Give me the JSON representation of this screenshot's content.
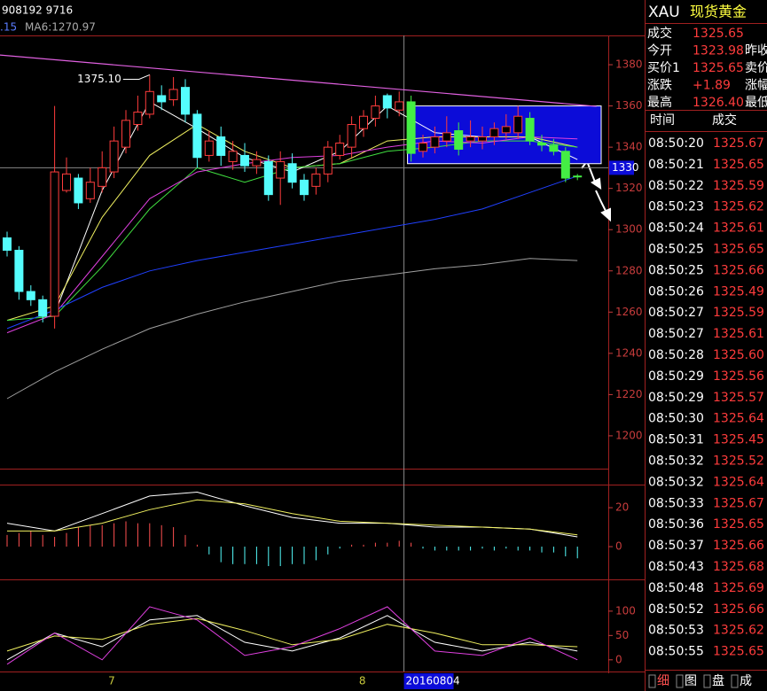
{
  "status": "908192 9716",
  "ma_info": [
    ".15",
    "MA6:1270.97"
  ],
  "chart_data": [
    {
      "type": "candlestick",
      "ylim": [
        1184.5,
        1394.2
      ],
      "yticks": [
        1200,
        1220,
        1240,
        1260,
        1280,
        1300,
        1320,
        1340,
        1360,
        1380
      ],
      "xlim": [
        -0.6,
        50.3
      ],
      "up_color": "#ff3c3c",
      "down_color": "#54fcfc",
      "open": [
        1296,
        1290,
        1270,
        1266,
        1258,
        1319,
        1325,
        1315,
        1321,
        1328,
        1340,
        1351,
        1356,
        1365,
        1363,
        1369,
        1356,
        1336,
        1345,
        1333,
        1336,
        1331,
        1333,
        1325,
        1332,
        1324,
        1321,
        1327,
        1336,
        1340,
        1349,
        1354,
        1365,
        1358,
        1362,
        1338,
        1340,
        1343,
        1348,
        1343,
        1343,
        1345,
        1347,
        1347,
        1354,
        1342,
        1341,
        1338,
        1326
      ],
      "high": [
        1299,
        1292,
        1273,
        1268,
        1360,
        1335,
        1327,
        1330,
        1338,
        1350,
        1358,
        1365,
        1375.1,
        1370,
        1374,
        1373,
        1358,
        1348,
        1350,
        1343,
        1342,
        1338,
        1336,
        1338,
        1337,
        1327,
        1330,
        1343,
        1346,
        1355,
        1358,
        1365,
        1366,
        1367,
        1365,
        1346,
        1350,
        1355,
        1352,
        1353,
        1350,
        1352,
        1356,
        1360,
        1357,
        1346,
        1344,
        1340,
        1327
      ],
      "low": [
        1287,
        1266,
        1263,
        1255,
        1252,
        1318,
        1310,
        1313,
        1318,
        1325,
        1337,
        1348,
        1354,
        1358,
        1360,
        1352,
        1330,
        1333,
        1331,
        1329,
        1328,
        1327,
        1314,
        1312,
        1320,
        1314,
        1317,
        1323,
        1334,
        1335,
        1345,
        1350,
        1354,
        1355,
        1333,
        1335,
        1337,
        1340,
        1336,
        1340,
        1339,
        1341,
        1344,
        1344,
        1341,
        1338,
        1336,
        1323,
        1324
      ],
      "close": [
        1290,
        1270,
        1266,
        1258,
        1328,
        1327,
        1313,
        1323,
        1330,
        1343,
        1353,
        1357,
        1367,
        1362,
        1368,
        1356,
        1335,
        1343,
        1336,
        1338,
        1331,
        1334,
        1317,
        1333,
        1323,
        1317,
        1327,
        1340,
        1342,
        1351,
        1355,
        1360,
        1359,
        1362,
        1337,
        1342,
        1345,
        1347,
        1339,
        1345,
        1345,
        1349,
        1350,
        1355,
        1343,
        1341,
        1338,
        1325,
        1325.65
      ],
      "series": [
        {
          "color": "#ffffff",
          "x": [
            0,
            4,
            8,
            12,
            16,
            20,
            24,
            28,
            32,
            36,
            40,
            44,
            48
          ],
          "values": [
            null,
            1259,
            1319,
            1362,
            1349,
            1335,
            1328,
            1338,
            1360,
            1347,
            1345,
            1345,
            1334
          ]
        },
        {
          "color": "#f0f060",
          "x": [
            0,
            4,
            8,
            12,
            16,
            20,
            24,
            28,
            32,
            36,
            40,
            44,
            48
          ],
          "values": [
            1256,
            1263,
            1306,
            1336,
            1351,
            1338,
            1330,
            1332,
            1343,
            1345,
            1345,
            1345,
            1340
          ]
        },
        {
          "color": "#40e040",
          "x": [
            0,
            4,
            8,
            12,
            16,
            20,
            24,
            28,
            32,
            36,
            40,
            44,
            48
          ],
          "values": [
            1256,
            1258,
            1282,
            1310,
            1330,
            1323,
            1330,
            1332,
            1338,
            1340,
            1343,
            1343,
            1340
          ]
        },
        {
          "color": "#e040e0",
          "x": [
            0,
            4,
            8,
            12,
            16,
            20,
            24,
            28,
            32,
            36,
            40,
            44,
            48
          ],
          "values": [
            1250,
            1259,
            1287,
            1315,
            1328,
            1332,
            1335,
            1336,
            1340,
            1343,
            1342,
            1345,
            1344
          ]
        },
        {
          "color": "#2040ff",
          "x": [
            0,
            4,
            8,
            12,
            16,
            20,
            24,
            28,
            32,
            36,
            40,
            44,
            48
          ],
          "values": [
            1252,
            1261,
            1272,
            1280,
            1285,
            1289,
            1293,
            1297,
            1301,
            1305,
            1310,
            1318,
            1326
          ]
        },
        {
          "color": "#a0a0a0",
          "x": [
            0,
            4,
            8,
            12,
            16,
            20,
            24,
            28,
            32,
            36,
            40,
            44,
            48
          ],
          "values": [
            1218,
            1231,
            1242,
            1252,
            1259,
            1265,
            1270,
            1275,
            1278,
            1281,
            1283,
            1286,
            1285
          ]
        }
      ],
      "trendline": {
        "color": "#e060e0",
        "x": [
          -0.6,
          49.6
        ],
        "values": [
          1384.7,
          1359.8
        ]
      },
      "box": {
        "color": "#0c0cd8",
        "down_color": "#44ee44",
        "x": [
          33.7,
          50
        ],
        "values": [
          1332,
          1360
        ]
      },
      "high_label": "1375.10",
      "cursor": {
        "value": 1330,
        "label": "1330"
      },
      "xticks": [
        {
          "value": 8.8,
          "label": "7"
        },
        {
          "value": 29.9,
          "label": "8"
        },
        {
          "value": 33.4,
          "label": "20160804"
        }
      ]
    },
    {
      "type": "macd",
      "ylim": [
        -15,
        31.4
      ],
      "yticks": [
        0,
        20
      ],
      "up_color": "#ff5050",
      "down_color": "#54fcfc",
      "values": [
        6,
        7,
        8,
        6,
        5,
        7,
        10,
        11,
        11,
        12,
        13,
        12,
        12,
        11,
        10,
        6,
        1,
        -4,
        -8,
        -9,
        -9,
        -9,
        -10,
        -10,
        -9,
        -9,
        -7,
        -4,
        -1,
        1,
        1,
        2,
        2,
        3,
        2,
        -1,
        -2,
        -2,
        -2,
        -2,
        -1,
        -2,
        -1,
        -2,
        -2,
        -3,
        -3,
        -5,
        -6
      ],
      "series": [
        {
          "color": "#ffffff",
          "x": [
            0,
            4,
            8,
            12,
            16,
            20,
            24,
            28,
            32,
            36,
            40,
            44,
            48
          ],
          "values": [
            12,
            8,
            17,
            26,
            28,
            21,
            15,
            12,
            12,
            10,
            10,
            9,
            5
          ]
        },
        {
          "color": "#f0f060",
          "x": [
            0,
            4,
            8,
            12,
            16,
            20,
            24,
            28,
            32,
            36,
            40,
            44,
            48
          ],
          "values": [
            8,
            8,
            12,
            19,
            24,
            22,
            17,
            13,
            12,
            11,
            10,
            9,
            6
          ]
        }
      ]
    },
    {
      "type": "kdj",
      "ylim": [
        -24,
        158
      ],
      "yticks": [
        0,
        50,
        100
      ],
      "series": [
        {
          "color": "#ffffff",
          "x": [
            0,
            4,
            8,
            12,
            16,
            20,
            24,
            28,
            32,
            36,
            40,
            44,
            48
          ],
          "values": [
            0,
            55,
            27,
            82,
            91,
            36,
            18,
            45,
            91,
            36,
            18,
            36,
            18
          ]
        },
        {
          "color": "#f0f060",
          "x": [
            0,
            4,
            8,
            12,
            16,
            20,
            24,
            28,
            32,
            36,
            40,
            44,
            48
          ],
          "values": [
            18,
            49,
            42,
            73,
            85,
            60,
            31,
            42,
            73,
            55,
            31,
            31,
            27
          ]
        },
        {
          "color": "#e040e0",
          "x": [
            0,
            4,
            8,
            12,
            16,
            20,
            24,
            28,
            32,
            36,
            40,
            44,
            48
          ],
          "values": [
            -9,
            55,
            0,
            109,
            82,
            9,
            27,
            64,
            109,
            18,
            9,
            45,
            0
          ]
        }
      ]
    }
  ],
  "quote": {
    "symbol": "XAU",
    "name": "现货黄金",
    "rows": [
      [
        "成交",
        "1325.65",
        ""
      ],
      [
        "今开",
        "1323.98",
        "昨收"
      ],
      [
        "买价1",
        "1325.65",
        "卖价"
      ],
      [
        "涨跌",
        "+1.89",
        "涨幅"
      ],
      [
        "最高",
        "1326.40",
        "最低"
      ]
    ]
  },
  "ticks_table": {
    "header": [
      "时间",
      "成交"
    ],
    "rows": [
      [
        "08:50:20",
        "1325.67"
      ],
      [
        "08:50:21",
        "1325.65"
      ],
      [
        "08:50:22",
        "1325.59"
      ],
      [
        "08:50:23",
        "1325.62"
      ],
      [
        "08:50:24",
        "1325.61"
      ],
      [
        "08:50:25",
        "1325.65"
      ],
      [
        "08:50:25",
        "1325.66"
      ],
      [
        "08:50:26",
        "1325.49"
      ],
      [
        "08:50:27",
        "1325.59"
      ],
      [
        "08:50:27",
        "1325.61"
      ],
      [
        "08:50:28",
        "1325.60"
      ],
      [
        "08:50:29",
        "1325.56"
      ],
      [
        "08:50:29",
        "1325.57"
      ],
      [
        "08:50:30",
        "1325.64"
      ],
      [
        "08:50:31",
        "1325.45"
      ],
      [
        "08:50:32",
        "1325.52"
      ],
      [
        "08:50:32",
        "1325.64"
      ],
      [
        "08:50:33",
        "1325.67"
      ],
      [
        "08:50:36",
        "1325.65"
      ],
      [
        "08:50:37",
        "1325.66"
      ],
      [
        "08:50:43",
        "1325.68"
      ],
      [
        "08:50:48",
        "1325.69"
      ],
      [
        "08:50:52",
        "1325.66"
      ],
      [
        "08:50:53",
        "1325.62"
      ],
      [
        "08:50:55",
        "1325.65"
      ]
    ]
  },
  "tabs": [
    "细",
    "图",
    "盘",
    "成"
  ]
}
